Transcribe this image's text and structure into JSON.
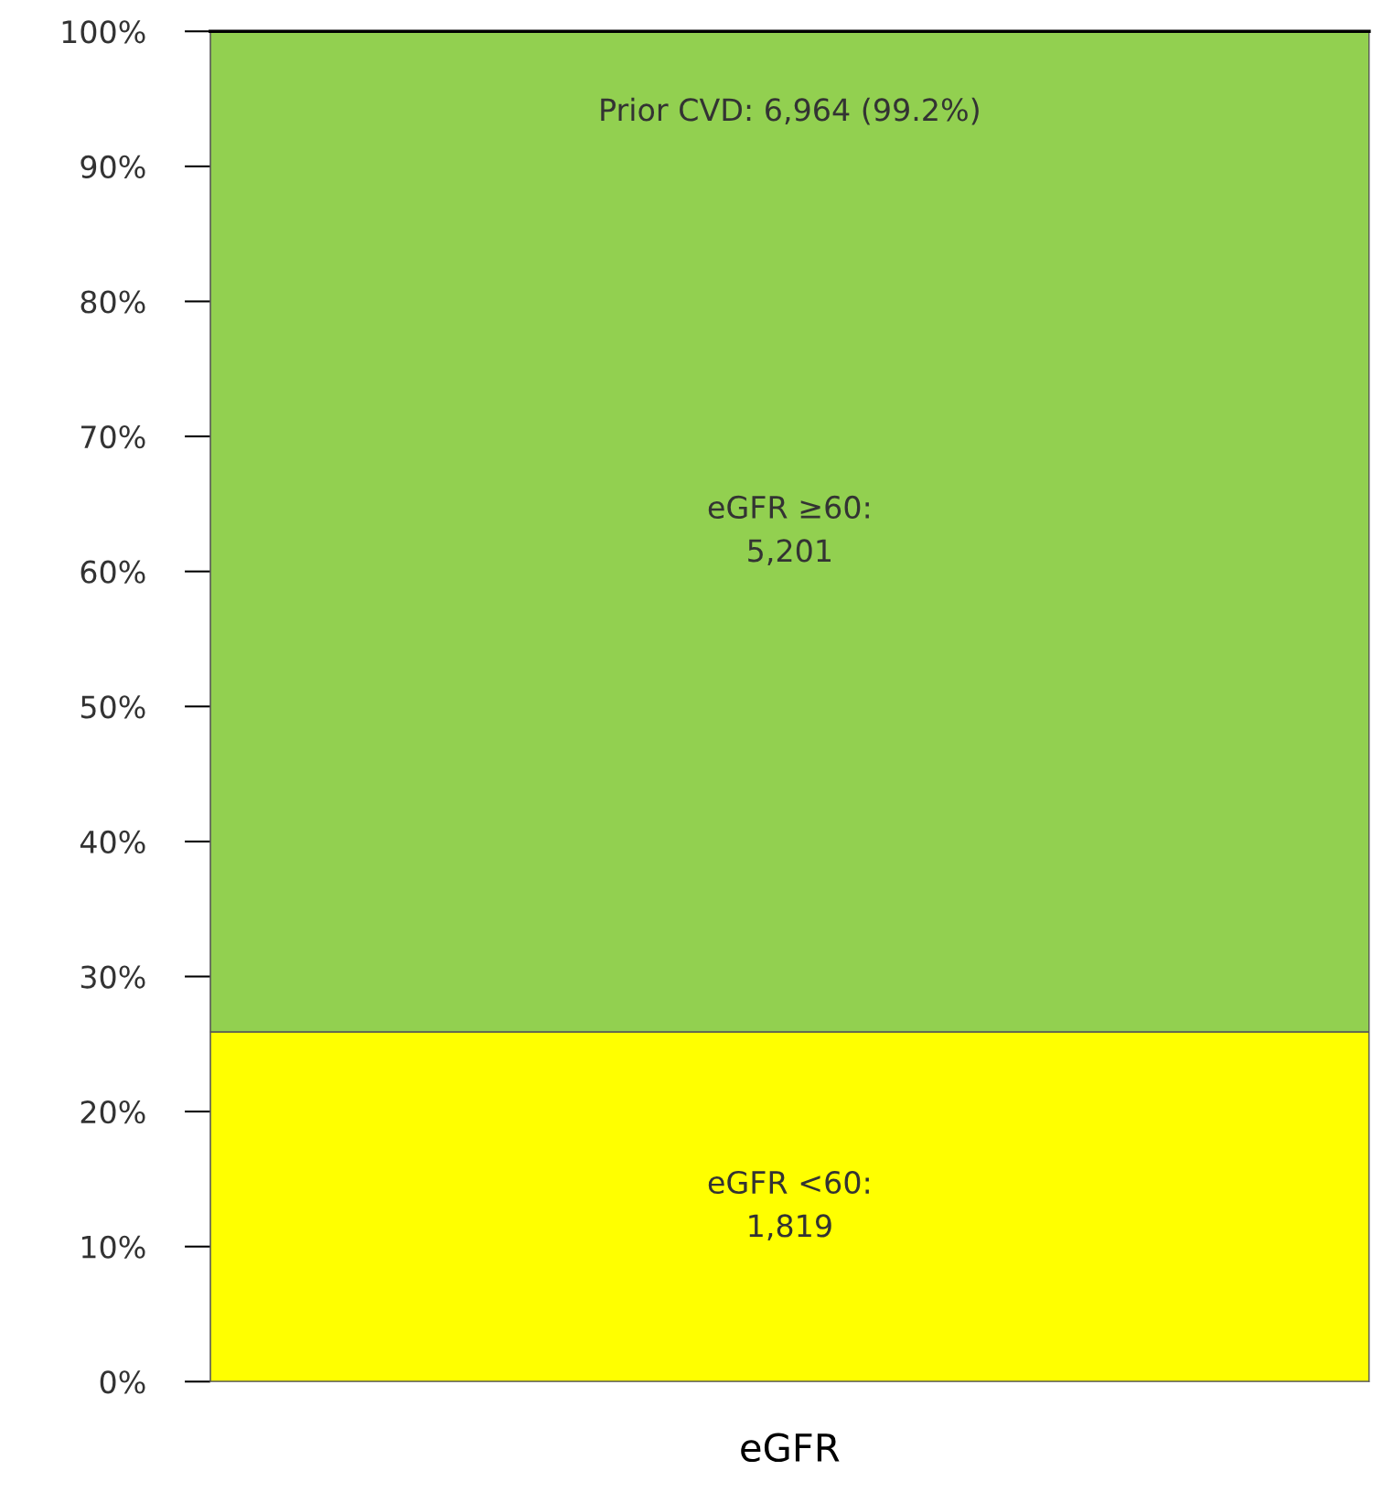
{
  "chart_data": {
    "type": "bar",
    "stacked": true,
    "categories": [
      "eGFR"
    ],
    "series": [
      {
        "color": "#ffff00",
        "values": [
          25.9
        ],
        "value_labels": [
          "eGFR <60:\n1,819"
        ]
      },
      {
        "color": "#92d050",
        "values": [
          74.1
        ],
        "value_labels": [
          "eGFR ≥60:\n5,201"
        ]
      }
    ],
    "ylim": [
      0,
      100
    ],
    "yticks": [
      {
        "value": 0,
        "label": "0%"
      },
      {
        "value": 10,
        "label": "10%"
      },
      {
        "value": 20,
        "label": "20%"
      },
      {
        "value": 30,
        "label": "30%"
      },
      {
        "value": 40,
        "label": "40%"
      },
      {
        "value": 50,
        "label": "50%"
      },
      {
        "value": 60,
        "label": "60%"
      },
      {
        "value": 70,
        "label": "70%"
      },
      {
        "value": 80,
        "label": "80%"
      },
      {
        "value": 90,
        "label": "90%"
      },
      {
        "value": 100,
        "label": "100%"
      }
    ],
    "annotations": [
      "Prior CVD: 6,964 (99.2%)"
    ],
    "grid": false,
    "legend": false
  }
}
